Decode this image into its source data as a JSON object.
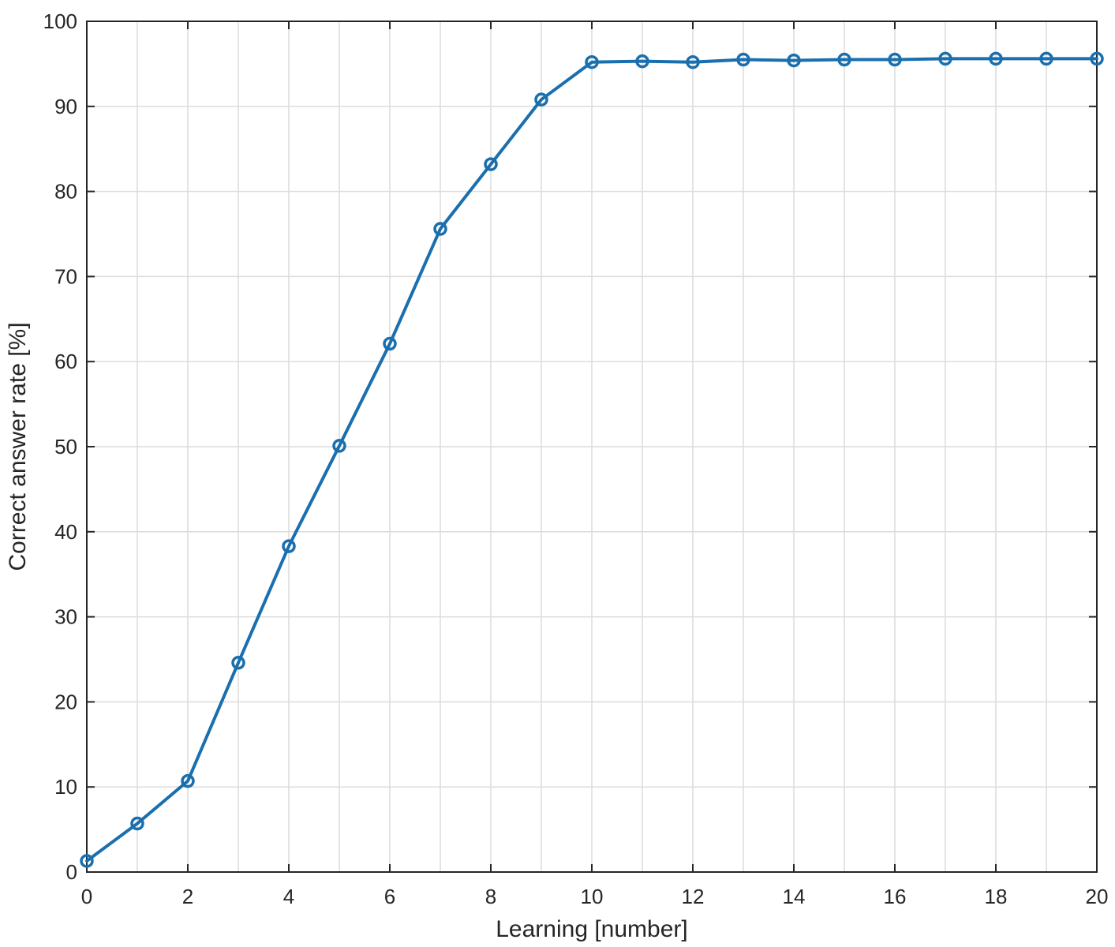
{
  "chart_data": {
    "type": "line",
    "title": "",
    "xlabel": "Learning [number]",
    "ylabel": "Correct answer rate [%]",
    "xlim": [
      0,
      20
    ],
    "ylim": [
      0,
      100
    ],
    "xticks": [
      0,
      2,
      4,
      6,
      8,
      10,
      12,
      14,
      16,
      18,
      20
    ],
    "yticks": [
      0,
      10,
      20,
      30,
      40,
      50,
      60,
      70,
      80,
      90,
      100
    ],
    "grid": true,
    "legend": "none",
    "marker": "circle",
    "series": [
      {
        "color": "#1a6fae",
        "x": [
          0,
          1,
          2,
          3,
          4,
          5,
          6,
          7,
          8,
          9,
          10,
          11,
          12,
          13,
          14,
          15,
          16,
          17,
          18,
          19,
          20
        ],
        "y": [
          1.3,
          5.7,
          10.7,
          24.6,
          38.3,
          50.1,
          62.1,
          75.6,
          83.2,
          90.8,
          95.2,
          95.3,
          95.2,
          95.5,
          95.4,
          95.5,
          95.5,
          95.6,
          95.6,
          95.6,
          95.6
        ]
      }
    ]
  }
}
